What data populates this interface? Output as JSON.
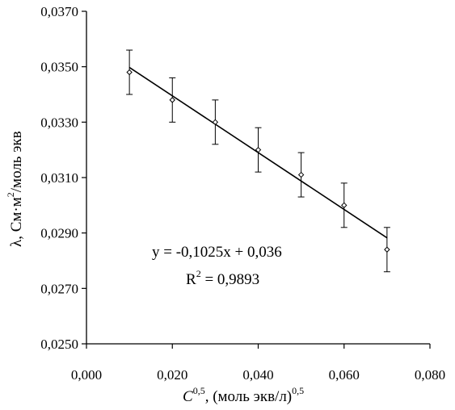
{
  "chart_data": {
    "type": "scatter",
    "x": [
      0.01,
      0.02,
      0.03,
      0.04,
      0.05,
      0.06,
      0.07
    ],
    "y": [
      0.0348,
      0.0338,
      0.033,
      0.032,
      0.0311,
      0.03,
      0.0284
    ],
    "error_bars": {
      "upper": [
        0.0356,
        0.0346,
        0.0338,
        0.0328,
        0.0319,
        0.0308,
        0.0292
      ],
      "lower": [
        0.034,
        0.033,
        0.0322,
        0.0312,
        0.0303,
        0.0292,
        0.0276
      ]
    },
    "trendline": {
      "type": "linear",
      "slope": -0.1025,
      "intercept": 0.036,
      "x_range": [
        0.01,
        0.07
      ],
      "equation": "y = -0,1025x + 0,036",
      "r2_label": "R",
      "r2_sup": "2",
      "r2_value": " = 0,9893"
    },
    "xlim": [
      0.0,
      0.08
    ],
    "ylim": [
      0.025,
      0.037
    ],
    "x_ticks": [
      {
        "value": 0.0,
        "label": "0,000"
      },
      {
        "value": 0.02,
        "label": "0,020"
      },
      {
        "value": 0.04,
        "label": "0,040"
      },
      {
        "value": 0.06,
        "label": "0,060"
      },
      {
        "value": 0.08,
        "label": "0,080"
      }
    ],
    "y_ticks": [
      {
        "value": 0.025,
        "label": "0,0250"
      },
      {
        "value": 0.027,
        "label": "0,0270"
      },
      {
        "value": 0.029,
        "label": "0,0290"
      },
      {
        "value": 0.031,
        "label": "0,0310"
      },
      {
        "value": 0.033,
        "label": "0,0330"
      },
      {
        "value": 0.035,
        "label": "0,0350"
      },
      {
        "value": 0.037,
        "label": "0,0370"
      }
    ],
    "xlabel": {
      "main": "C",
      "sup1": "0,5",
      "rest": ", (моль экв/л)",
      "sup2": "0,5"
    },
    "ylabel": {
      "main": "λ, См·м",
      "sup": "2",
      "rest": "/моль экв"
    },
    "grid": false
  }
}
